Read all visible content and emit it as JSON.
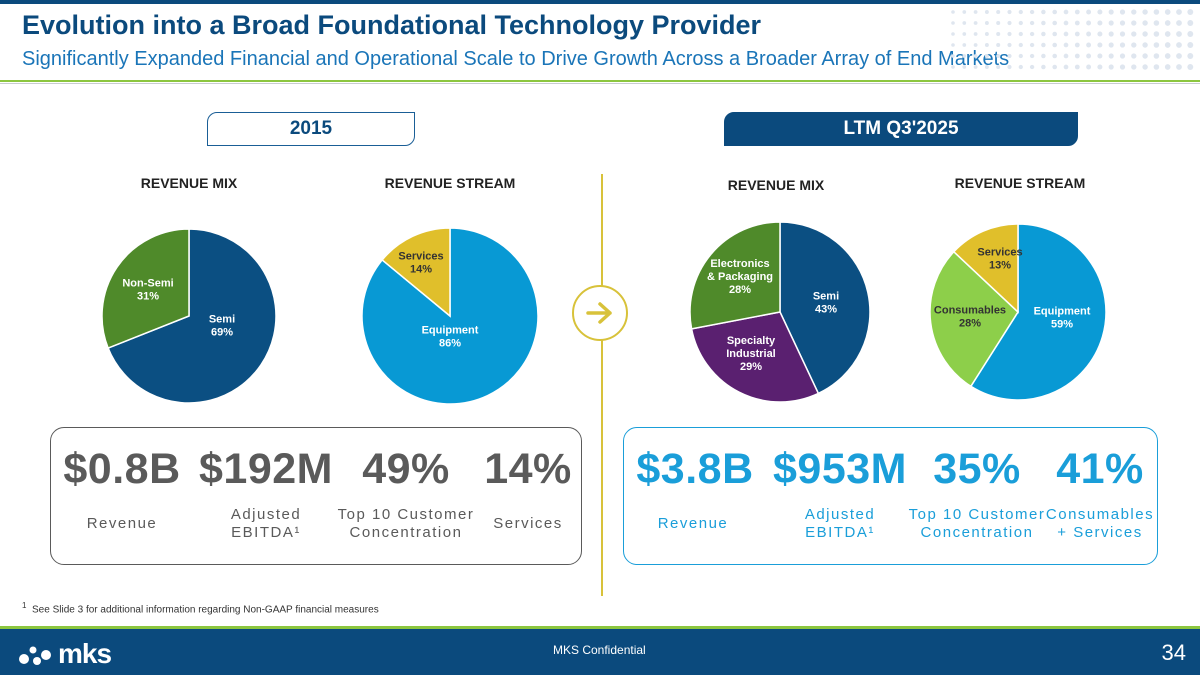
{
  "header": {
    "title": "Evolution into a Broad Foundational Technology Provider",
    "subtitle": "Significantly Expanded Financial and Operational Scale to Drive Growth Across a Broader Array of End Markets"
  },
  "periods": {
    "left": "2015",
    "right": "LTM Q3'2025"
  },
  "section_heads": {
    "left_mix": "REVENUE MIX",
    "left_stream": "REVENUE STREAM",
    "right_mix": "REVENUE MIX",
    "right_stream": "REVENUE STREAM"
  },
  "colors": {
    "semi": "#0b4f82",
    "non_semi": "#4f8a2a",
    "equipment": "#0899d4",
    "services": "#e0bf2b",
    "specialty": "#5a2070",
    "consumables": "#8dcf4a",
    "divider": "#d8c23a"
  },
  "chart_data": [
    {
      "type": "pie",
      "title": "REVENUE MIX",
      "period": "2015",
      "slices": [
        {
          "label": "Semi",
          "value": 69,
          "pct_text": "69%"
        },
        {
          "label": "Non-Semi",
          "value": 31,
          "pct_text": "31%"
        }
      ]
    },
    {
      "type": "pie",
      "title": "REVENUE STREAM",
      "period": "2015",
      "slices": [
        {
          "label": "Equipment",
          "value": 86,
          "pct_text": "86%"
        },
        {
          "label": "Services",
          "value": 14,
          "pct_text": "14%"
        }
      ]
    },
    {
      "type": "pie",
      "title": "REVENUE MIX",
      "period": "LTM Q3'2025",
      "slices": [
        {
          "label": "Semi",
          "value": 43,
          "pct_text": "43%"
        },
        {
          "label": "Specialty Industrial",
          "value": 29,
          "pct_text": "29%"
        },
        {
          "label": "Electronics & Packaging",
          "value": 28,
          "pct_text": "28%"
        }
      ]
    },
    {
      "type": "pie",
      "title": "REVENUE STREAM",
      "period": "LTM Q3'2025",
      "slices": [
        {
          "label": "Equipment",
          "value": 59,
          "pct_text": "59%"
        },
        {
          "label": "Consumables",
          "value": 28,
          "pct_text": "28%"
        },
        {
          "label": "Services",
          "value": 13,
          "pct_text": "13%"
        }
      ]
    }
  ],
  "metrics_2015": [
    {
      "value": "$0.8B",
      "label": "Revenue"
    },
    {
      "value": "$192M",
      "label": "Adjusted EBITDA¹"
    },
    {
      "value": "49%",
      "label": "Top 10 Customer Concentration"
    },
    {
      "value": "14%",
      "label": "Services"
    }
  ],
  "metrics_ltm": [
    {
      "value": "$3.8B",
      "label": "Revenue"
    },
    {
      "value": "$953M",
      "label": "Adjusted EBITDA¹"
    },
    {
      "value": "35%",
      "label": "Top 10 Customer Concentration"
    },
    {
      "value": "41%",
      "label": "Consumables + Services"
    }
  ],
  "footnote": {
    "marker": "1",
    "text": "See Slide 3 for additional information regarding Non-GAAP financial measures"
  },
  "footer": {
    "confidential": "MKS Confidential",
    "page_number": "34",
    "logo_text": "mks"
  }
}
